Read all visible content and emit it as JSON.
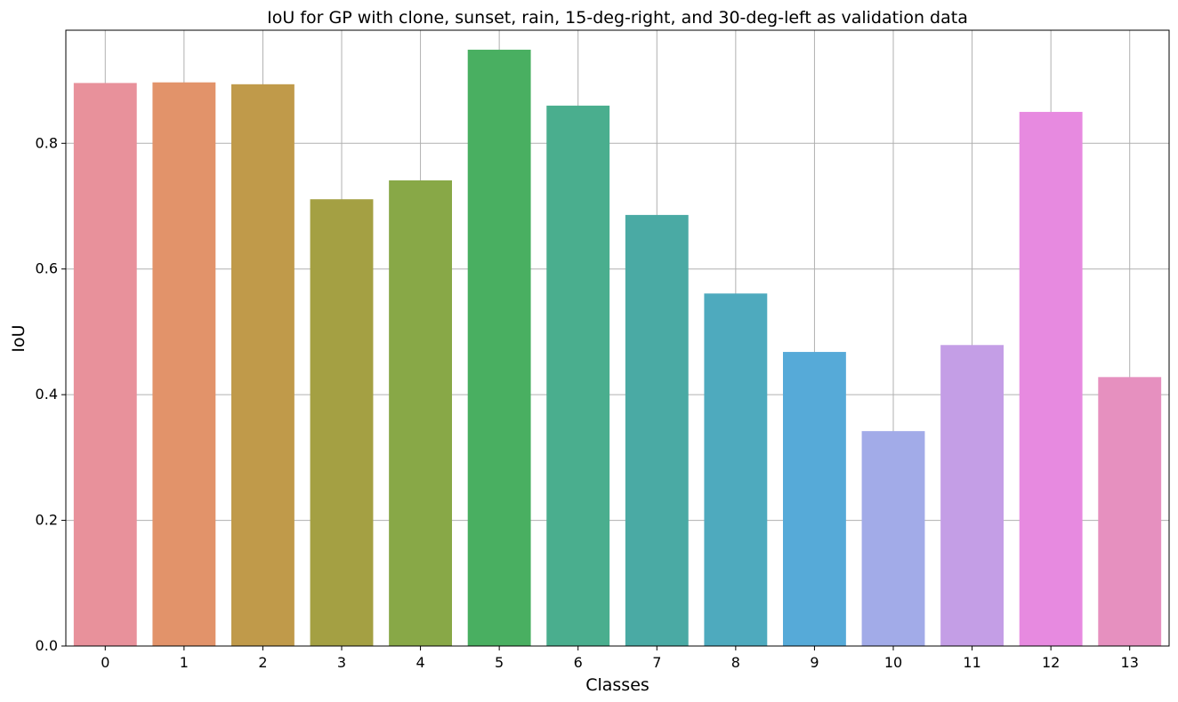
{
  "chart_data": {
    "type": "bar",
    "title": "IoU for GP with clone, sunset, rain, 15-deg-right, and 30-deg-left as validation data",
    "xlabel": "Classes",
    "ylabel": "IoU",
    "categories": [
      "0",
      "1",
      "2",
      "3",
      "4",
      "5",
      "6",
      "7",
      "8",
      "9",
      "10",
      "11",
      "12",
      "13"
    ],
    "values": [
      0.896,
      0.897,
      0.894,
      0.711,
      0.741,
      0.949,
      0.86,
      0.686,
      0.561,
      0.468,
      0.342,
      0.479,
      0.85,
      0.428
    ],
    "colors": [
      "#e8919b",
      "#e2936a",
      "#c09a4a",
      "#a4a043",
      "#88a847",
      "#49af61",
      "#4aae8e",
      "#4aaaa4",
      "#4eaabe",
      "#56aad8",
      "#a2abe8",
      "#c49ee6",
      "#e78ae0",
      "#e690bf"
    ],
    "ylim": [
      0,
      0.98
    ],
    "yticks": [
      0.0,
      0.2,
      0.4,
      0.6,
      0.8
    ],
    "ytick_labels": [
      "0.0",
      "0.2",
      "0.4",
      "0.6",
      "0.8"
    ],
    "grid": true
  }
}
